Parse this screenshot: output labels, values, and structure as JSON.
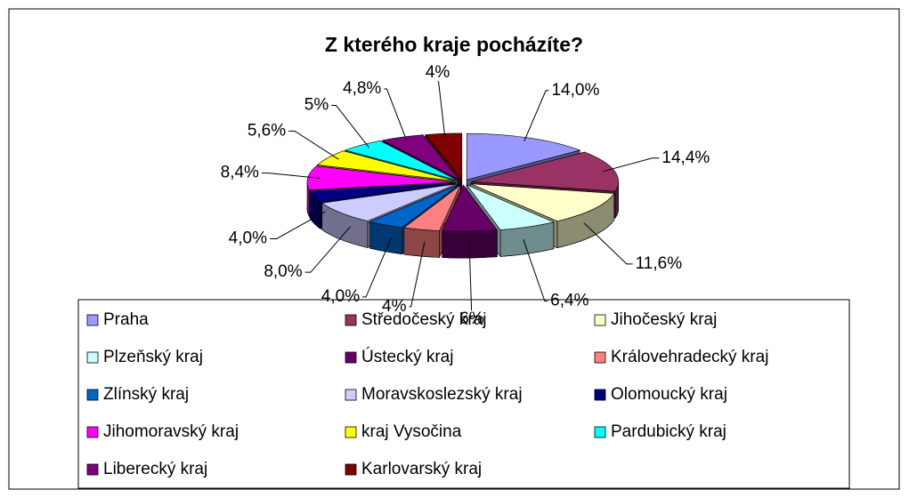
{
  "chart_data": {
    "type": "pie",
    "title": "Z kterého kraje pocházíte?",
    "categories": [
      "Praha",
      "Středočeský kraj",
      "Jihočeský kraj",
      "Plzeňský kraj",
      "Ústecký kraj",
      "Královehradecký kraj",
      "Zlínský kraj",
      "Moravskoslezský kraj",
      "Olomoucký kraj",
      "Jihomoravský kraj",
      "kraj Vysočina",
      "Pardubický kraj",
      "Liberecký kraj",
      "Karlovarský kraj"
    ],
    "values": [
      14.0,
      14.4,
      11.6,
      6.4,
      6,
      4,
      4.0,
      8.0,
      4.0,
      8.4,
      5.6,
      5,
      4.8,
      4
    ],
    "value_labels": [
      "14,0%",
      "14,4%",
      "11,6%",
      "6,4%",
      "6%",
      "4%",
      "4,0%",
      "8,0%",
      "4,0%",
      "8,4%",
      "5,6%",
      "5%",
      "4,8%",
      "4%"
    ],
    "colors": [
      "#9999ff",
      "#993366",
      "#ffffcc",
      "#ccffff",
      "#660066",
      "#ff8080",
      "#0066cc",
      "#ccccff",
      "#000080",
      "#ff00ff",
      "#ffff00",
      "#00ffff",
      "#800080",
      "#800000"
    ],
    "legend": "bottom"
  }
}
